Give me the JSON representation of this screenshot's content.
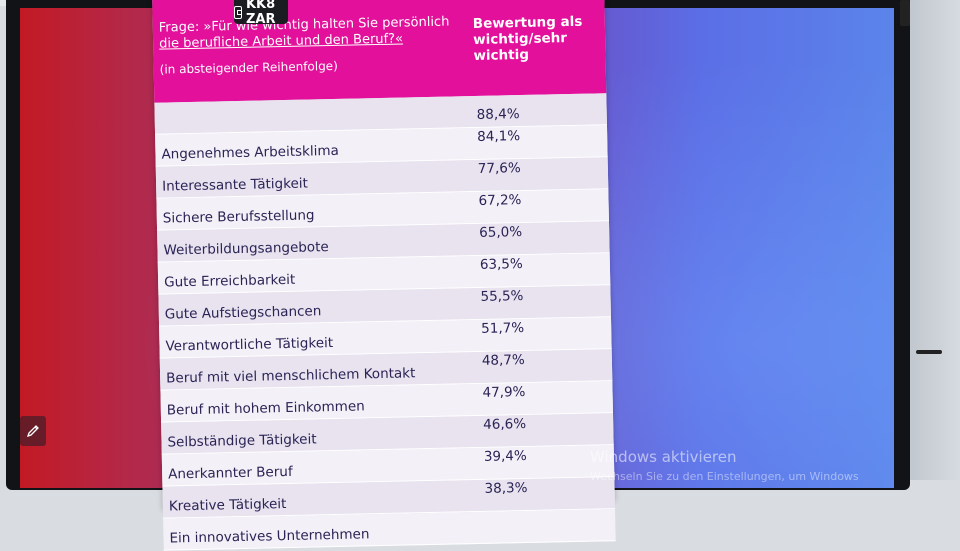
{
  "badge": {
    "label": "KK8 ZAR",
    "icon": "building-icon"
  },
  "slide": {
    "question_line1": "Frage: »Für wie wichtig halten Sie persönlich",
    "question_line2": "die berufliche Arbeit und den Beruf?«",
    "order_note": "(in absteigender Reihenfolge)",
    "column_header": "Bewertung als wichtig/sehr wichtig",
    "header_color": "#e2109a",
    "first_value": "88,4%",
    "rows": [
      {
        "label": "Angenehmes Arbeitsklima",
        "value": "84,1%"
      },
      {
        "label": "Interessante Tätigkeit",
        "value": "77,6%"
      },
      {
        "label": "Sichere Berufsstellung",
        "value": "67,2%"
      },
      {
        "label": "Weiterbildungsangebote",
        "value": "65,0%"
      },
      {
        "label": "Gute Erreichbarkeit",
        "value": "63,5%"
      },
      {
        "label": "Gute Aufstiegschancen",
        "value": "55,5%"
      },
      {
        "label": "Verantwortliche Tätigkeit",
        "value": "51,7%"
      },
      {
        "label": "Beruf mit viel menschlichem Kontakt",
        "value": "48,7%"
      },
      {
        "label": "Beruf mit hohem Einkommen",
        "value": "47,9%"
      },
      {
        "label": "Selbständige Tätigkeit",
        "value": "46,6%"
      },
      {
        "label": "Anerkannter Beruf",
        "value": "39,4%"
      },
      {
        "label": "Kreative Tätigkeit",
        "value": "38,3%"
      },
      {
        "label": "Ein innovatives Unternehmen",
        "value": ""
      }
    ]
  },
  "pencil_widget": {
    "icon": "pencil-icon"
  },
  "watermark": {
    "title": "Windows aktivieren",
    "subtitle": "Wechseln Sie zu den Einstellungen, um Windows"
  }
}
